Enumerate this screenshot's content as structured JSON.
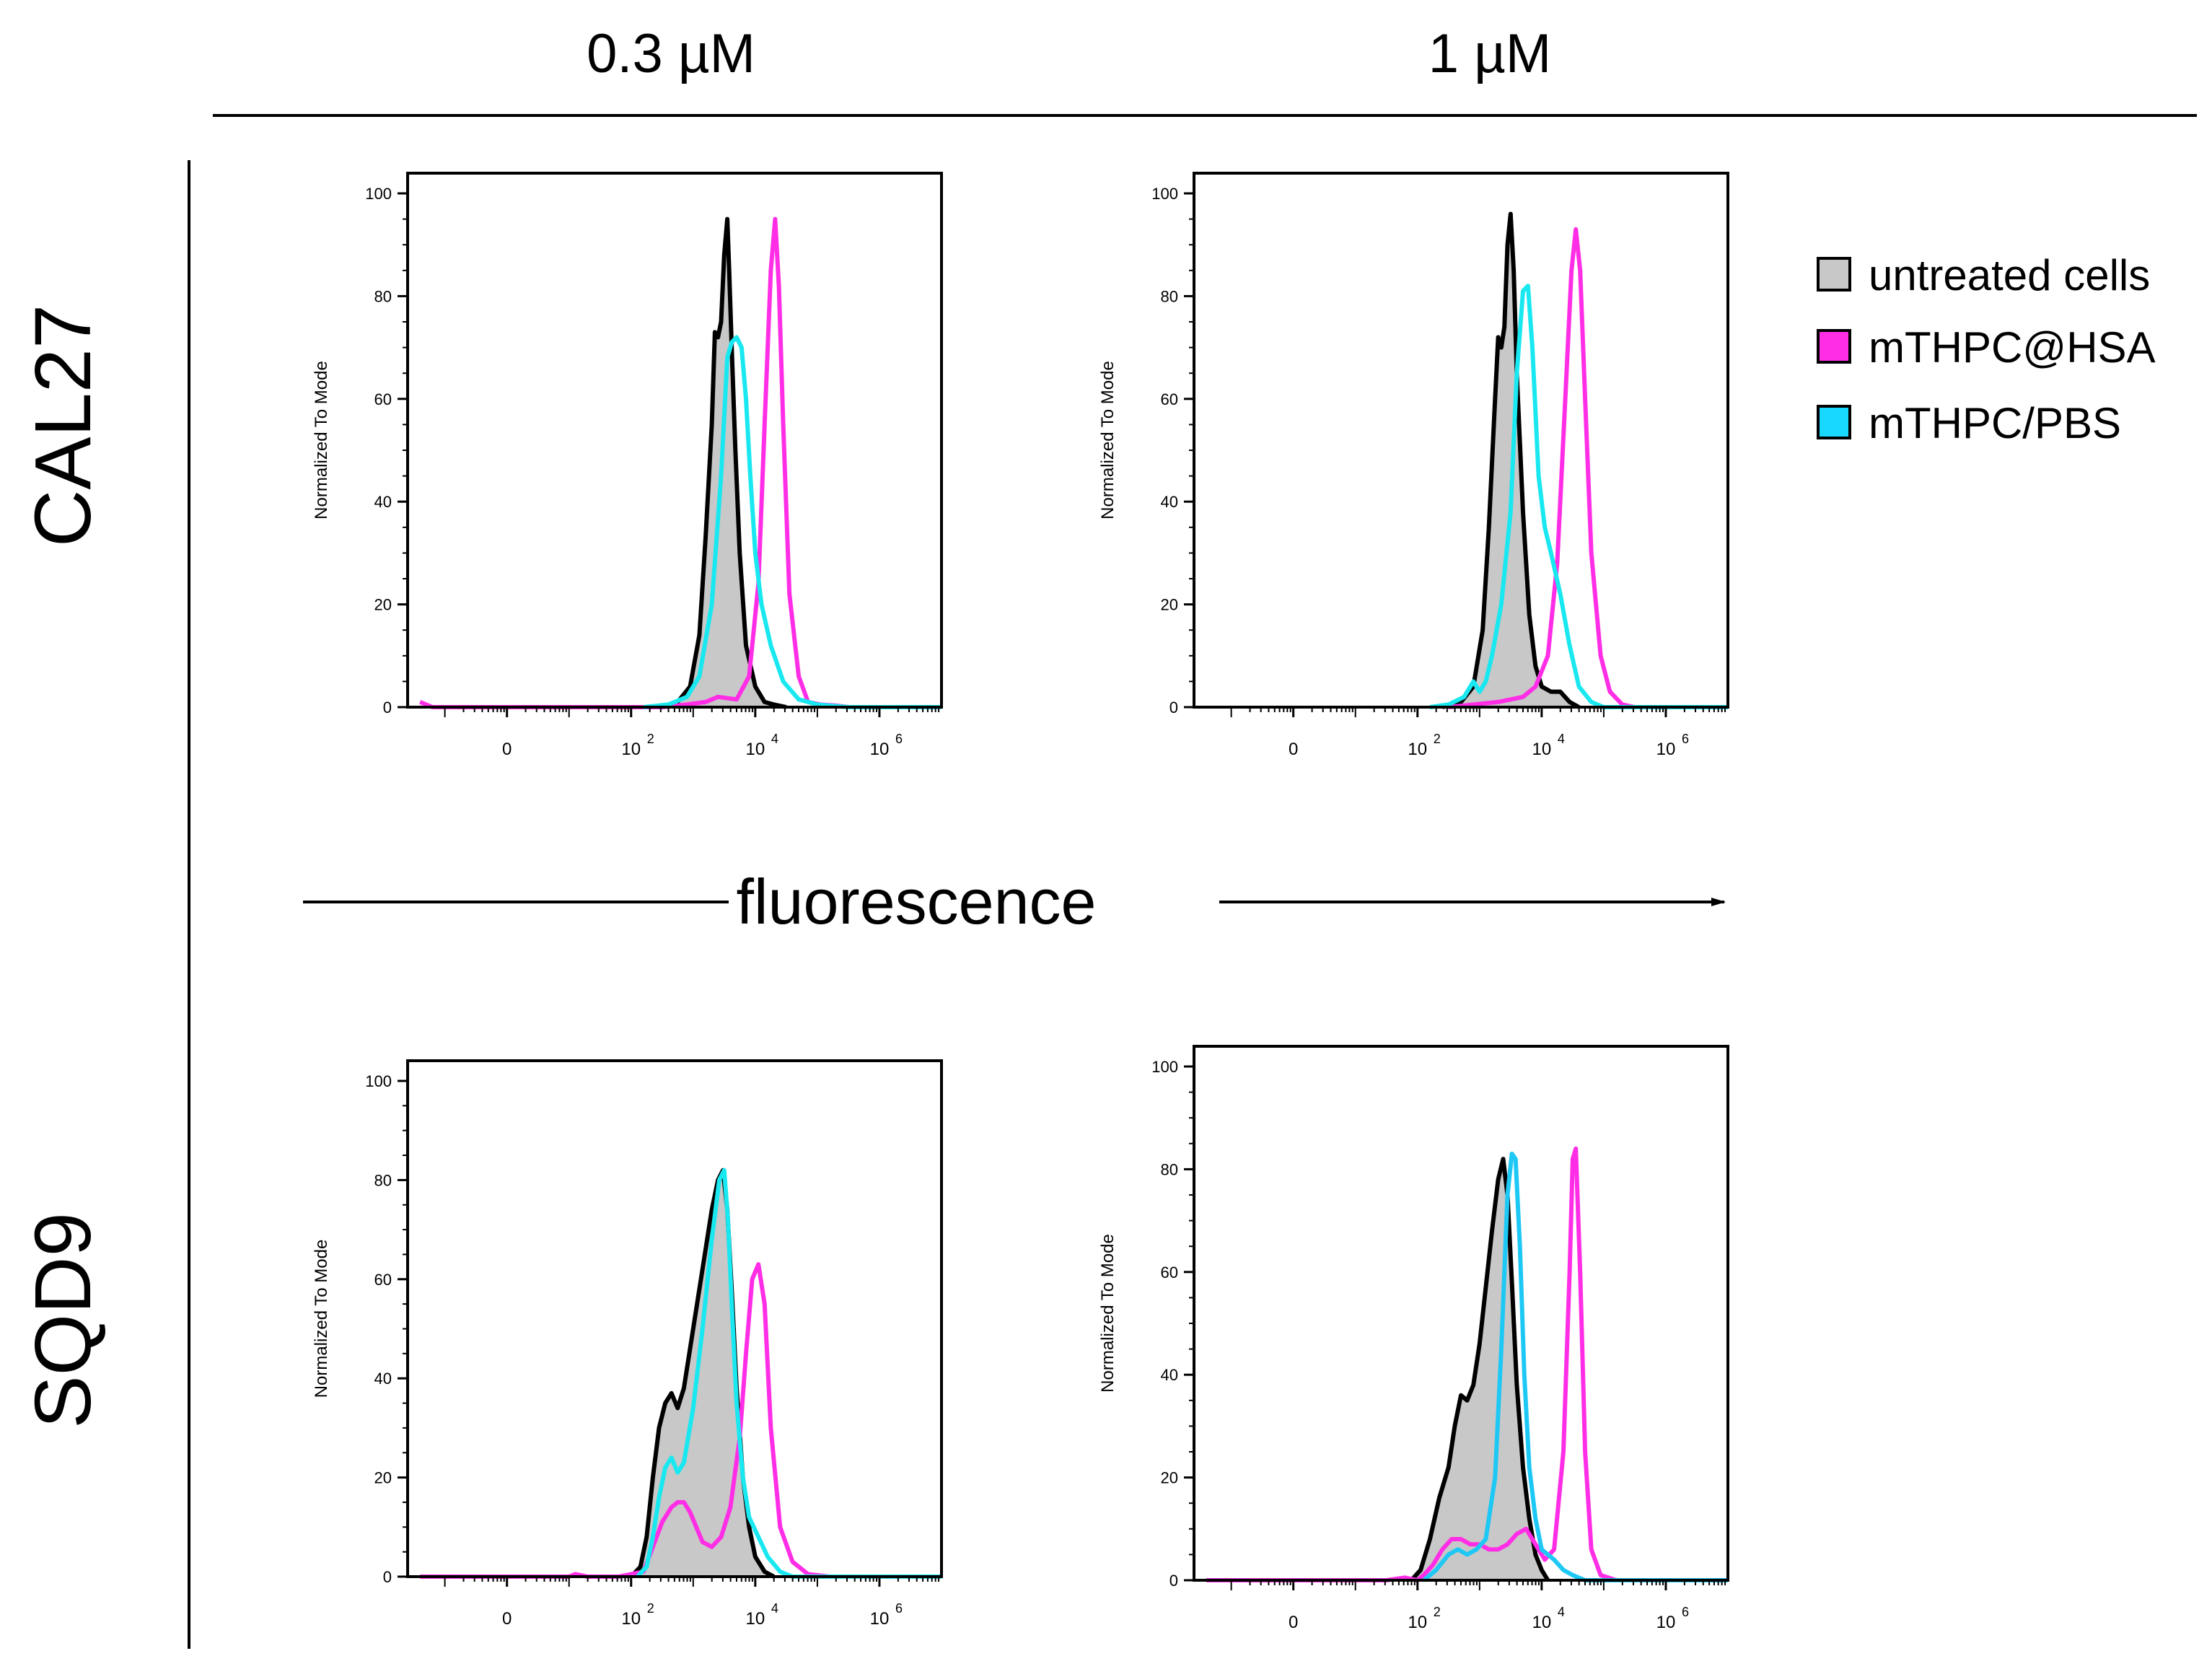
{
  "figure": {
    "columns": [
      "0.3 µM",
      "1 µM"
    ],
    "rows": [
      "CAL27",
      "SQD9"
    ],
    "center_label": "fluorescence"
  },
  "legend": {
    "items": [
      {
        "label": "untreated cells",
        "color": "#c8c8c8"
      },
      {
        "label": "mTHPC@HSA",
        "color": "#ff2ee6"
      },
      {
        "label": "mTHPC/PBS",
        "color": "#19d8ff"
      }
    ]
  },
  "colors": {
    "untreated_fill": "#c8c8c8",
    "untreated_line": "#000000",
    "hsa": "#ff2ee6",
    "pbs_cyan": "#19e8f0",
    "pbs_blue": "#1ec8f5"
  },
  "chart_data": [
    {
      "type": "area",
      "panel": "CAL27 0.3 µM",
      "ylabel": "Normalized To Mode",
      "ylim": [
        0,
        100
      ],
      "yticks": [
        "0",
        "20",
        "40",
        "60",
        "80",
        "100"
      ],
      "xticks": [
        {
          "base": "0",
          "exp": ""
        },
        {
          "base": "10",
          "exp": "2"
        },
        {
          "base": "10",
          "exp": "4"
        },
        {
          "base": "10",
          "exp": "6"
        }
      ],
      "series": [
        {
          "name": "untreated cells",
          "x": [
            2.45,
            2.75,
            2.95,
            3.1,
            3.2,
            3.3,
            3.35,
            3.4,
            3.45,
            3.5,
            3.55,
            3.58,
            3.62,
            3.68,
            3.75,
            3.85,
            4.0,
            4.15,
            4.3,
            4.5
          ],
          "y": [
            0,
            1,
            4,
            14,
            33,
            55,
            73,
            72,
            75,
            88,
            95,
            85,
            70,
            50,
            30,
            12,
            4,
            1,
            0.5,
            0
          ]
        },
        {
          "name": "mTHPC@HSA",
          "x": [
            -1.4,
            -1.2,
            2.5,
            2.9,
            3.2,
            3.4,
            3.7,
            3.9,
            4.05,
            4.15,
            4.25,
            4.32,
            4.38,
            4.45,
            4.55,
            4.7,
            4.85,
            5.05,
            5.3,
            5.5,
            7.0
          ],
          "y": [
            1,
            0,
            0,
            0.5,
            1,
            2,
            1.5,
            6,
            24,
            55,
            85,
            95,
            82,
            55,
            22,
            6,
            1,
            0.5,
            0.3,
            0,
            0
          ]
        },
        {
          "name": "mTHPC/PBS",
          "x": [
            2.2,
            2.6,
            2.9,
            3.1,
            3.3,
            3.45,
            3.55,
            3.62,
            3.7,
            3.78,
            3.85,
            3.92,
            4.0,
            4.1,
            4.25,
            4.45,
            4.7,
            5.0,
            5.5,
            7.0
          ],
          "y": [
            0,
            0.5,
            2,
            6,
            20,
            45,
            68,
            71,
            72,
            70,
            60,
            45,
            30,
            20,
            12,
            5,
            1.5,
            0.5,
            0,
            0
          ]
        }
      ]
    },
    {
      "type": "area",
      "panel": "CAL27 1 µM",
      "ylabel": "Normalized To Mode",
      "ylim": [
        0,
        100
      ],
      "yticks": [
        "0",
        "20",
        "40",
        "60",
        "80",
        "100"
      ],
      "xticks": [
        {
          "base": "0",
          "exp": ""
        },
        {
          "base": "10",
          "exp": "2"
        },
        {
          "base": "10",
          "exp": "4"
        },
        {
          "base": "10",
          "exp": "6"
        }
      ],
      "series": [
        {
          "name": "untreated cells",
          "x": [
            2.4,
            2.7,
            2.9,
            3.05,
            3.15,
            3.25,
            3.3,
            3.35,
            3.4,
            3.45,
            3.5,
            3.55,
            3.6,
            3.7,
            3.8,
            3.9,
            4.0,
            4.15,
            4.3,
            4.45,
            4.6
          ],
          "y": [
            0,
            1,
            4,
            15,
            35,
            60,
            72,
            70,
            74,
            90,
            96,
            85,
            65,
            38,
            18,
            8,
            4,
            3,
            3,
            1,
            0
          ]
        },
        {
          "name": "mTHPC@HSA",
          "x": [
            2.5,
            2.9,
            3.3,
            3.7,
            3.9,
            4.1,
            4.25,
            4.38,
            4.48,
            4.55,
            4.62,
            4.7,
            4.8,
            4.95,
            5.1,
            5.3,
            5.5,
            7.0
          ],
          "y": [
            0,
            0.5,
            1,
            2,
            4,
            10,
            28,
            60,
            85,
            93,
            85,
            60,
            30,
            10,
            3,
            0.5,
            0,
            0
          ]
        },
        {
          "name": "mTHPC/PBS",
          "x": [
            2.2,
            2.5,
            2.75,
            2.9,
            3.0,
            3.1,
            3.2,
            3.35,
            3.5,
            3.6,
            3.7,
            3.78,
            3.85,
            3.95,
            4.05,
            4.15,
            4.3,
            4.45,
            4.6,
            4.8,
            5.0,
            7.0
          ],
          "y": [
            0,
            0.5,
            2,
            5,
            3,
            5,
            10,
            20,
            38,
            65,
            81,
            82,
            70,
            45,
            35,
            30,
            22,
            12,
            4,
            1,
            0,
            0
          ]
        }
      ]
    },
    {
      "type": "area",
      "panel": "SQD9 0.3 µM",
      "ylabel": "Normalized To Mode",
      "ylim": [
        0,
        100
      ],
      "yticks": [
        "0",
        "20",
        "40",
        "60",
        "80",
        "100"
      ],
      "xticks": [
        {
          "base": "0",
          "exp": ""
        },
        {
          "base": "10",
          "exp": "2"
        },
        {
          "base": "10",
          "exp": "4"
        },
        {
          "base": "10",
          "exp": "6"
        }
      ],
      "series": [
        {
          "name": "untreated cells",
          "x": [
            2.0,
            2.15,
            2.25,
            2.35,
            2.45,
            2.55,
            2.65,
            2.75,
            2.85,
            3.0,
            3.15,
            3.3,
            3.4,
            3.48,
            3.55,
            3.62,
            3.7,
            3.8,
            3.9,
            4.0,
            4.15,
            4.3
          ],
          "y": [
            0,
            2,
            8,
            20,
            30,
            35,
            37,
            34,
            38,
            50,
            62,
            74,
            80,
            82,
            74,
            58,
            38,
            20,
            10,
            4,
            1,
            0
          ]
        },
        {
          "name": "mTHPC@HSA",
          "x": [
            -1.4,
            1.0,
            1.1,
            1.3,
            1.8,
            2.2,
            2.35,
            2.5,
            2.65,
            2.75,
            2.85,
            2.95,
            3.05,
            3.15,
            3.3,
            3.45,
            3.6,
            3.75,
            3.85,
            3.95,
            4.05,
            4.15,
            4.25,
            4.4,
            4.6,
            4.85,
            5.2,
            7.0
          ],
          "y": [
            0,
            0,
            0.5,
            0,
            0,
            1,
            6,
            11,
            14,
            15,
            15,
            13,
            10,
            7,
            6,
            8,
            14,
            28,
            45,
            60,
            63,
            55,
            30,
            10,
            3,
            0.5,
            0,
            0
          ]
        },
        {
          "name": "mTHPC/PBS",
          "x": [
            2.1,
            2.25,
            2.35,
            2.45,
            2.55,
            2.65,
            2.75,
            2.85,
            3.0,
            3.15,
            3.3,
            3.42,
            3.5,
            3.56,
            3.62,
            3.7,
            3.8,
            3.9,
            4.05,
            4.2,
            4.4,
            4.6,
            7.0
          ],
          "y": [
            0,
            2,
            8,
            16,
            22,
            24,
            21,
            23,
            34,
            50,
            68,
            80,
            82,
            72,
            55,
            35,
            20,
            12,
            8,
            4,
            1,
            0,
            0
          ]
        }
      ]
    },
    {
      "type": "area",
      "panel": "SQD9 1 µM",
      "ylabel": "Normalized To Mode",
      "ylim": [
        0,
        100
      ],
      "yticks": [
        "0",
        "20",
        "40",
        "60",
        "80",
        "100"
      ],
      "xticks": [
        {
          "base": "0",
          "exp": ""
        },
        {
          "base": "10",
          "exp": "2"
        },
        {
          "base": "10",
          "exp": "4"
        },
        {
          "base": "10",
          "exp": "6"
        }
      ],
      "series": [
        {
          "name": "untreated cells",
          "x": [
            1.9,
            2.05,
            2.2,
            2.35,
            2.5,
            2.6,
            2.7,
            2.8,
            2.9,
            3.0,
            3.1,
            3.2,
            3.3,
            3.38,
            3.45,
            3.52,
            3.6,
            3.7,
            3.8,
            3.9,
            4.0,
            4.1
          ],
          "y": [
            0,
            2,
            8,
            16,
            22,
            30,
            36,
            35,
            38,
            46,
            57,
            68,
            78,
            82,
            75,
            58,
            38,
            22,
            12,
            5,
            2,
            0
          ]
        },
        {
          "name": "mTHPC@HSA",
          "x": [
            -1.4,
            1.5,
            1.8,
            2.0,
            2.1,
            2.25,
            2.4,
            2.55,
            2.7,
            2.85,
            3.0,
            3.15,
            3.3,
            3.45,
            3.6,
            3.75,
            3.9,
            4.05,
            4.2,
            4.35,
            4.45,
            4.5,
            4.55,
            4.62,
            4.7,
            4.8,
            4.95,
            5.2,
            7.0
          ],
          "y": [
            0,
            0,
            0.5,
            0,
            1,
            3,
            6,
            8,
            8,
            7,
            7,
            6,
            6,
            7,
            9,
            10,
            7,
            4,
            6,
            25,
            60,
            82,
            84,
            60,
            25,
            6,
            1,
            0,
            0
          ]
        },
        {
          "name": "mTHPC/PBS",
          "x": [
            2.1,
            2.3,
            2.5,
            2.65,
            2.8,
            2.95,
            3.1,
            3.25,
            3.35,
            3.45,
            3.52,
            3.58,
            3.65,
            3.72,
            3.8,
            3.9,
            4.0,
            4.1,
            4.2,
            4.35,
            4.5,
            4.7,
            7.0
          ],
          "y": [
            0,
            2,
            5,
            6,
            5,
            6,
            8,
            20,
            45,
            75,
            83,
            82,
            65,
            40,
            22,
            12,
            6,
            5,
            4,
            2,
            1,
            0,
            0
          ]
        }
      ]
    }
  ]
}
